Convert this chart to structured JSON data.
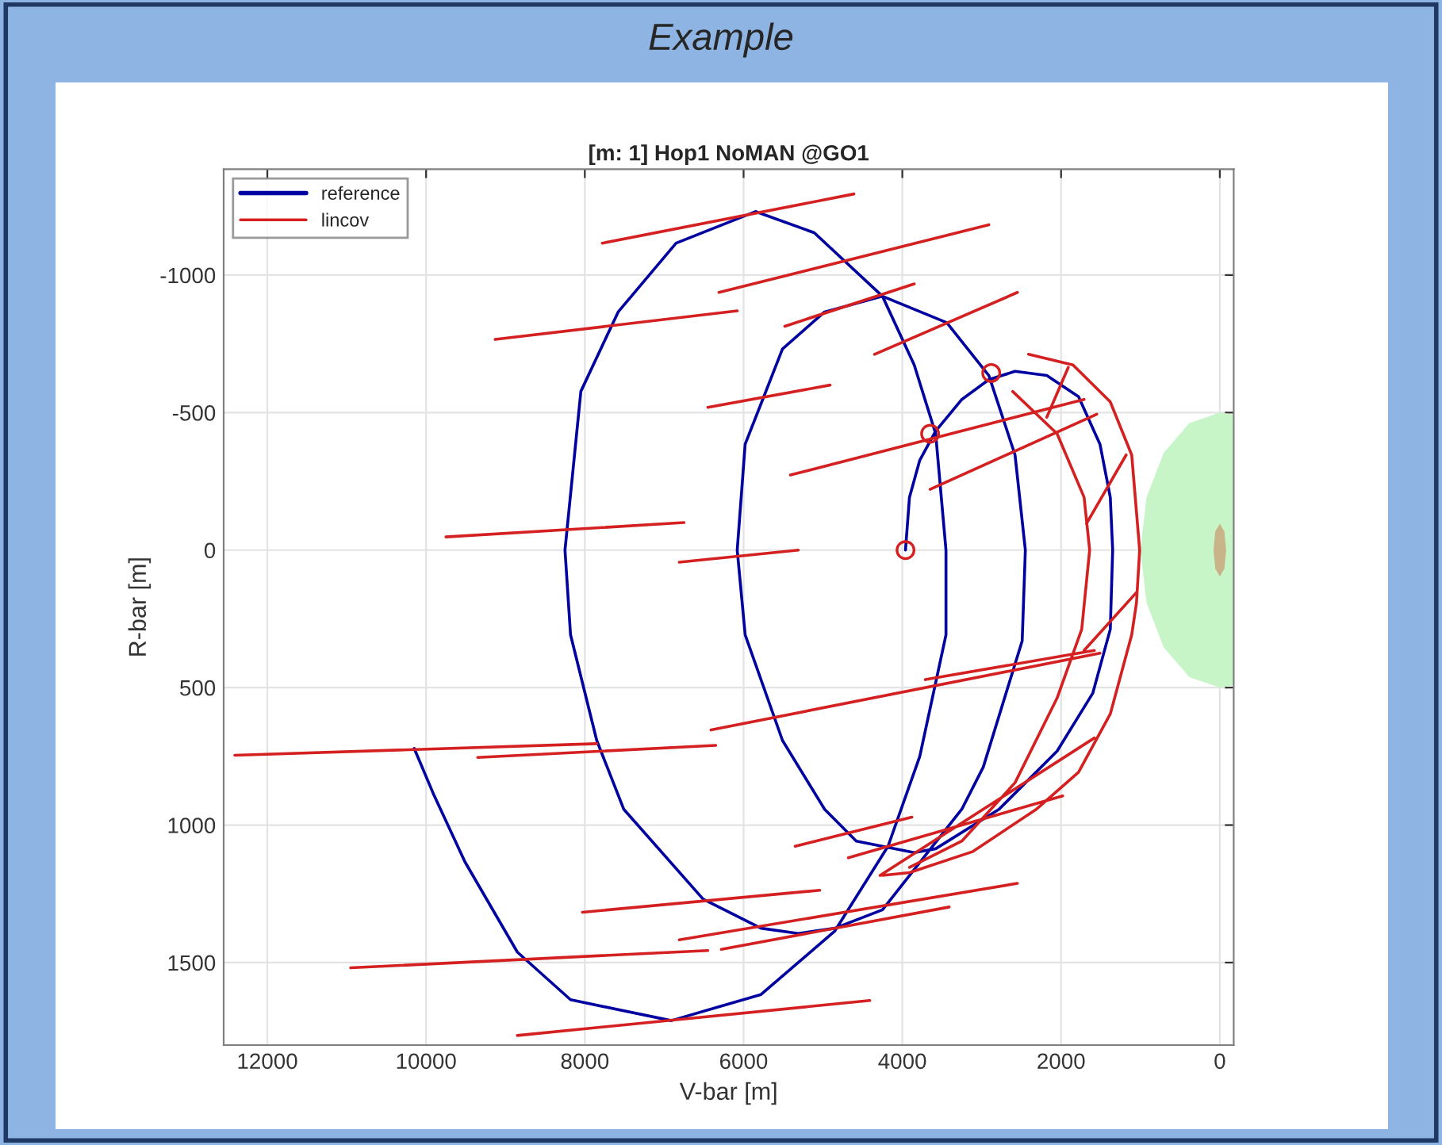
{
  "chart_data": {
    "type": "line",
    "title": "[m: 1] Hop1 NoMAN @GO1",
    "xlabel": "V-bar [m]",
    "ylabel": "R-bar [m]",
    "annotations": [
      "Example"
    ],
    "xlim": [
      12550,
      -175
    ],
    "xticks": [
      12000,
      10000,
      8000,
      6000,
      4000,
      2000,
      0
    ],
    "ylim": [
      1800,
      -1385
    ],
    "yticks": [
      -1000,
      -500,
      0,
      500,
      1000,
      1500
    ],
    "grid": true,
    "legend": "top left",
    "series": [
      {
        "type": "area",
        "color": "#c8f5c8",
        "x": [
          -175,
          0,
          383,
          707,
          924,
          1000,
          924,
          707,
          383,
          0,
          -175
        ],
        "values": [
          -492,
          -500,
          -462,
          -354,
          -191,
          0,
          191,
          354,
          462,
          500,
          492
        ]
      },
      {
        "type": "area",
        "color": "#c9b48a",
        "x": [
          80,
          57,
          0,
          -57,
          -80,
          -57,
          0,
          57,
          80
        ],
        "values": [
          0,
          -68,
          -96,
          -68,
          0,
          68,
          96,
          68,
          0
        ]
      },
      {
        "type": "line",
        "name": "reference",
        "color": "#0000a0",
        "x": [
          3960,
          3910,
          3780,
          3580,
          3250,
          2910,
          2580,
          2180,
          1780,
          1510,
          1380,
          1350,
          1380,
          1600,
          2050,
          2780,
          3580,
          3850,
          4580,
          4980,
          5510,
          5980,
          6080,
          5980,
          5510,
          4980,
          4250,
          3440,
          2910,
          2580,
          2450,
          2490,
          2980,
          3250,
          4250,
          4850,
          5310,
          5780,
          6510,
          7510,
          7850,
          8180,
          8250,
          8050,
          7580,
          6850,
          5850,
          5110,
          4250,
          3850,
          3580,
          3450,
          3450,
          3780,
          4180,
          4850,
          5780,
          6910,
          8180,
          8850,
          9510,
          9910,
          10150
        ],
        "values": [
          0,
          -192,
          -327,
          -433,
          -548,
          -620,
          -650,
          -635,
          -558,
          -385,
          -192,
          0,
          288,
          520,
          731,
          942,
          1086,
          1100,
          1058,
          942,
          692,
          308,
          0,
          -385,
          -731,
          -866,
          -923,
          -827,
          -635,
          -346,
          0,
          330,
          789,
          942,
          1308,
          1375,
          1394,
          1375,
          1269,
          942,
          692,
          308,
          0,
          -577,
          -866,
          -1116,
          -1231,
          -1154,
          -923,
          -673,
          -423,
          0,
          308,
          750,
          1077,
          1385,
          1616,
          1711,
          1635,
          1462,
          1134,
          885,
          721
        ]
      },
      {
        "type": "line",
        "name": "lincov",
        "color": "#d42020",
        "x": [
          7780,
          4610,
          null,
          6310,
          2910,
          null,
          9130,
          6080,
          null,
          5480,
          3850,
          null,
          4350,
          2550,
          null,
          6450,
          4910,
          null,
          5410,
          1710,
          null,
          3650,
          1550,
          null,
          9750,
          6750,
          null,
          6810,
          5310,
          null,
          2180,
          1910,
          null,
          3710,
          1580,
          null,
          6410,
          1510,
          null,
          5350,
          3880,
          null,
          4680,
          1980,
          null,
          4280,
          1580,
          null,
          8030,
          5040,
          null,
          6810,
          2550,
          null,
          6280,
          3410,
          null,
          10950,
          6450,
          null,
          8850,
          4410,
          null,
          12410,
          7850,
          null,
          9350,
          6350,
          null,
          1680,
          1180,
          null,
          1710,
          1050,
          null,
          2410,
          1850,
          1380,
          1110,
          1010,
          null,
          1010,
          1050,
          1110,
          1380,
          1780,
          2310,
          3110,
          3910,
          4250,
          null,
          2610,
          2050,
          1710,
          1640,
          null,
          1640,
          1740,
          2050,
          2580,
          3250,
          3910
        ],
        "values": [
          -1116,
          -1295,
          null,
          -937,
          -1183,
          null,
          -766,
          -870,
          null,
          -814,
          -968,
          null,
          -712,
          -937,
          null,
          -519,
          -600,
          null,
          -273,
          -548,
          null,
          -221,
          -494,
          null,
          -48,
          -100,
          null,
          44,
          0,
          null,
          -483,
          -664,
          null,
          471,
          365,
          null,
          654,
          375,
          null,
          1077,
          971,
          null,
          1119,
          894,
          null,
          1183,
          683,
          null,
          1317,
          1237,
          null,
          1417,
          1212,
          null,
          1452,
          1298,
          null,
          1519,
          1456,
          null,
          1765,
          1638,
          null,
          746,
          704,
          null,
          754,
          710,
          null,
          -96,
          -346,
          null,
          365,
          154,
          null,
          -712,
          -673,
          -539,
          -346,
          0,
          null,
          0,
          192,
          308,
          596,
          808,
          942,
          1096,
          1173,
          1183,
          null,
          -577,
          -423,
          -192,
          0,
          null,
          0,
          288,
          538,
          846,
          1058,
          1154
        ]
      },
      {
        "type": "scatter",
        "color": "#d42020",
        "marker": "circle",
        "x": [
          3960,
          2880,
          3650
        ],
        "values": [
          0,
          -644,
          -423
        ]
      }
    ]
  }
}
